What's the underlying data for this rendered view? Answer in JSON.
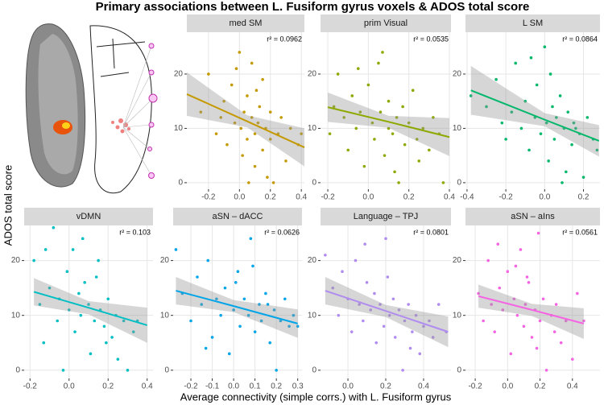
{
  "figure": {
    "title": "Primary associations between L. Fusiform gyrus voxels & ADOS total score",
    "x_label": "Average connectivity (simple corrs.) with L. Fusiform gyrus",
    "y_label": "ADOS total score"
  },
  "chart_data": [
    {
      "type": "scatter",
      "title": "med  SM",
      "annotation": "r² = 0.0962",
      "color": "#c49a00",
      "x": [
        -0.25,
        -0.2,
        -0.15,
        -0.12,
        -0.1,
        -0.08,
        -0.05,
        -0.03,
        0,
        0.01,
        0.02,
        0.03,
        0.05,
        0.05,
        0.06,
        0.08,
        0.08,
        0.1,
        0.1,
        0.12,
        0.13,
        0.15,
        0.15,
        0.17,
        0.18,
        0.2,
        0.2,
        0.22,
        0.25,
        0.27,
        0.3,
        0.33,
        0.38,
        0.4,
        -0.02,
        0.11
      ],
      "values": [
        13,
        20,
        9,
        12,
        15,
        7,
        18,
        11,
        24,
        10,
        5,
        13,
        8,
        16,
        0,
        12,
        22,
        9,
        3,
        11,
        14,
        6,
        19,
        10,
        1,
        8,
        13,
        0,
        9,
        12,
        4,
        10,
        7,
        9,
        21,
        17
      ],
      "fit": {
        "x": [
          -0.34,
          0.05,
          0.42
        ],
        "y": [
          16.3,
          11.3,
          6.5
        ],
        "ci_low": [
          12.3,
          10.2,
          3.0
        ],
        "ci_high": [
          20.3,
          12.4,
          10.0
        ]
      },
      "xlim": [
        -0.34,
        0.42
      ],
      "ylim": [
        -1.2,
        27.7
      ],
      "xticks": [
        -0.2,
        {
          "value": 0,
          "label": "0.0"
        },
        0.2,
        0.4
      ],
      "yticks": [
        0,
        10,
        20
      ]
    },
    {
      "type": "scatter",
      "title": "prim  Visual",
      "annotation": "r² = 0.0535",
      "color": "#8ea800",
      "x": [
        -0.19,
        -0.17,
        -0.15,
        -0.12,
        -0.1,
        -0.08,
        -0.06,
        -0.04,
        -0.02,
        0,
        0.02,
        0.03,
        0.05,
        0.06,
        0.08,
        0.1,
        0.1,
        0.12,
        0.14,
        0.15,
        0.17,
        0.18,
        0.2,
        0.22,
        0.24,
        0.25,
        0.27,
        0.3,
        0.32,
        0.35,
        0.37,
        -0.05,
        0.07,
        0.13
      ],
      "values": [
        9,
        14,
        20,
        12,
        6,
        16,
        10,
        13,
        3,
        18,
        11,
        8,
        22,
        13,
        5,
        10,
        15,
        9,
        12,
        0,
        14,
        7,
        11,
        17,
        8,
        4,
        10,
        6,
        12,
        9,
        0,
        21,
        24,
        2
      ],
      "fit": {
        "x": [
          -0.2,
          0.1,
          0.4
        ],
        "y": [
          13.9,
          11.2,
          8.4
        ],
        "ci_low": [
          11.2,
          10.1,
          4.9
        ],
        "ci_high": [
          16.6,
          12.3,
          11.9
        ]
      },
      "xlim": [
        -0.236,
        0.408
      ],
      "ylim": [
        -1.2,
        27.7
      ],
      "xticks": [
        -0.2,
        {
          "value": 0,
          "label": "0.0"
        },
        0.2,
        0.4
      ],
      "yticks": [
        0,
        10,
        20
      ]
    },
    {
      "type": "scatter",
      "title": "L  SM",
      "annotation": "r² = 0.0864",
      "color": "#00b76a",
      "x": [
        -0.38,
        -0.3,
        -0.25,
        -0.22,
        -0.2,
        -0.17,
        -0.15,
        -0.12,
        -0.1,
        -0.08,
        -0.05,
        -0.04,
        -0.02,
        0,
        0.01,
        0.02,
        0.04,
        0.05,
        0.06,
        0.08,
        0.1,
        0.11,
        0.12,
        0.14,
        0.15,
        0.18,
        0.2,
        0.22,
        0.25,
        0.27,
        -0.07,
        0.03,
        0.09,
        0.16
      ],
      "values": [
        16,
        14,
        19,
        11,
        8,
        13,
        22,
        10,
        15,
        6,
        12,
        18,
        9,
        25,
        11,
        4,
        14,
        8,
        12,
        16,
        10,
        2,
        13,
        7,
        11,
        9,
        1,
        12,
        8,
        6,
        23,
        20,
        0,
        10
      ],
      "fit": {
        "x": [
          -0.38,
          0,
          0.28
        ],
        "y": [
          17,
          11.6,
          7.7
        ],
        "ci_low": [
          12.5,
          10.4,
          4.8
        ],
        "ci_high": [
          21.5,
          12.8,
          10.6
        ]
      },
      "xlim": [
        -0.408,
        0.285
      ],
      "ylim": [
        -1.2,
        27.7
      ],
      "xticks": [
        -0.4,
        -0.2,
        {
          "value": 0,
          "label": "0.0"
        },
        0.2
      ],
      "yticks": [
        0,
        10,
        20
      ]
    },
    {
      "type": "scatter",
      "title": "vDMN",
      "annotation": "r² = 0.103",
      "color": "#00bfc4",
      "x": [
        -0.18,
        -0.15,
        -0.13,
        -0.1,
        -0.08,
        -0.06,
        -0.05,
        -0.03,
        -0.01,
        0,
        0.02,
        0.03,
        0.05,
        0.06,
        0.08,
        0.1,
        0.11,
        0.13,
        0.15,
        0.16,
        0.18,
        0.2,
        0.22,
        0.24,
        0.25,
        0.28,
        0.3,
        0.33,
        0.35,
        -0.12,
        0.07,
        0.14,
        0.19
      ],
      "values": [
        20,
        12,
        5,
        15,
        26,
        9,
        13,
        0,
        18,
        11,
        22,
        7,
        14,
        10,
        16,
        12,
        3,
        9,
        20,
        11,
        8,
        13,
        6,
        10,
        2,
        9,
        0,
        7,
        9,
        22,
        24,
        17,
        5
      ],
      "fit": {
        "x": [
          -0.18,
          0.1,
          0.4
        ],
        "y": [
          14.3,
          11.4,
          8.2
        ],
        "ci_low": [
          11.8,
          10.2,
          5.0
        ],
        "ci_high": [
          16.8,
          12.6,
          11.4
        ]
      },
      "xlim": [
        -0.23,
        0.43
      ],
      "ylim": [
        -1.5,
        26.4
      ],
      "xticks": [
        -0.2,
        {
          "value": 0,
          "label": "0.0"
        },
        0.2,
        0.4
      ],
      "yticks": [
        0,
        10,
        20
      ]
    },
    {
      "type": "scatter",
      "title": "aSN – dACC",
      "annotation": "r² = 0.0626",
      "color": "#00a5e8",
      "x": [
        -0.27,
        -0.24,
        -0.2,
        -0.17,
        -0.15,
        -0.12,
        -0.1,
        -0.08,
        -0.06,
        -0.04,
        -0.02,
        0,
        0.02,
        0.03,
        0.05,
        0.07,
        0.08,
        0.1,
        0.12,
        0.13,
        0.15,
        0.17,
        0.19,
        0.2,
        0.22,
        0.24,
        0.26,
        0.28,
        0.3,
        -0.13,
        0.01,
        0.09,
        0.16
      ],
      "values": [
        22,
        14,
        9,
        17,
        12,
        20,
        6,
        13,
        10,
        15,
        3,
        11,
        18,
        8,
        13,
        10,
        24,
        7,
        12,
        9,
        14,
        5,
        11,
        0,
        9,
        13,
        8,
        10,
        8,
        4,
        16,
        19,
        12
      ],
      "fit": {
        "x": [
          -0.27,
          0,
          0.3
        ],
        "y": [
          14.5,
          11.7,
          8.5
        ],
        "ci_low": [
          12.0,
          10.6,
          5.9
        ],
        "ci_high": [
          17.0,
          12.8,
          11.1
        ]
      },
      "xlim": [
        -0.283,
        0.32
      ],
      "ylim": [
        -1.5,
        26.4
      ],
      "xticks": [
        -0.2,
        -0.1,
        {
          "value": 0,
          "label": "0.0"
        },
        0.1,
        0.2,
        0.3
      ],
      "yticks": [
        0,
        10,
        20
      ]
    },
    {
      "type": "scatter",
      "title": "Language – TPJ",
      "annotation": "r² = 0.0801",
      "color": "#b18cf0",
      "x": [
        -0.12,
        -0.08,
        -0.05,
        -0.03,
        0,
        0.02,
        0.04,
        0.06,
        0.08,
        0.1,
        0.12,
        0.14,
        0.15,
        0.17,
        0.19,
        0.2,
        0.22,
        0.24,
        0.25,
        0.27,
        0.29,
        0.3,
        0.32,
        0.34,
        0.36,
        0.38,
        0.4,
        0.43,
        0.45,
        0.48,
        0.52,
        0.09,
        0.21,
        0.33
      ],
      "values": [
        21,
        15,
        10,
        18,
        13,
        7,
        20,
        12,
        9,
        16,
        11,
        14,
        5,
        12,
        8,
        24,
        10,
        13,
        6,
        11,
        0,
        9,
        12,
        7,
        10,
        3,
        8,
        9,
        6,
        12,
        7,
        23,
        17,
        4
      ],
      "fit": {
        "x": [
          -0.12,
          0.2,
          0.53
        ],
        "y": [
          14.5,
          10.8,
          7
        ],
        "ci_low": [
          12.0,
          9.7,
          4.2
        ],
        "ci_high": [
          17.0,
          11.9,
          9.8
        ]
      },
      "xlim": [
        -0.145,
        0.545
      ],
      "ylim": [
        -1.5,
        26.4
      ],
      "xticks": [
        {
          "value": 0,
          "label": "0.0"
        },
        0.2,
        0.4
      ],
      "yticks": [
        0,
        10,
        20
      ]
    },
    {
      "type": "scatter",
      "title": "aSN – aIns",
      "annotation": "r² = 0.0561",
      "color": "#f564e3",
      "x": [
        -0.18,
        -0.15,
        -0.12,
        -0.1,
        -0.08,
        -0.05,
        -0.03,
        0,
        0.02,
        0.04,
        0.06,
        0.08,
        0.1,
        0.11,
        0.13,
        0.15,
        0.17,
        0.19,
        0.2,
        0.22,
        0.24,
        0.27,
        0.29,
        0.3,
        0.33,
        0.36,
        0.4,
        0.43,
        0.47,
        -0.06,
        0.05,
        0.12,
        0.18
      ],
      "values": [
        14,
        9,
        20,
        12,
        7,
        15,
        11,
        18,
        3,
        13,
        10,
        22,
        8,
        12,
        16,
        6,
        11,
        25,
        9,
        13,
        0,
        10,
        7,
        12,
        5,
        9,
        2,
        14,
        9,
        23,
        19,
        17,
        4
      ],
      "fit": {
        "x": [
          -0.18,
          0.15,
          0.47
        ],
        "y": [
          13.5,
          11,
          8.5
        ],
        "ci_low": [
          11.4,
          9.9,
          5.7
        ],
        "ci_high": [
          15.6,
          12.1,
          11.3
        ]
      },
      "xlim": [
        -0.26,
        0.57
      ],
      "ylim": [
        -1.5,
        26.4
      ],
      "xticks": [
        -0.2,
        {
          "value": 0,
          "label": "0.0"
        },
        0.2,
        0.4
      ],
      "yticks": [
        0,
        10,
        20
      ]
    }
  ]
}
